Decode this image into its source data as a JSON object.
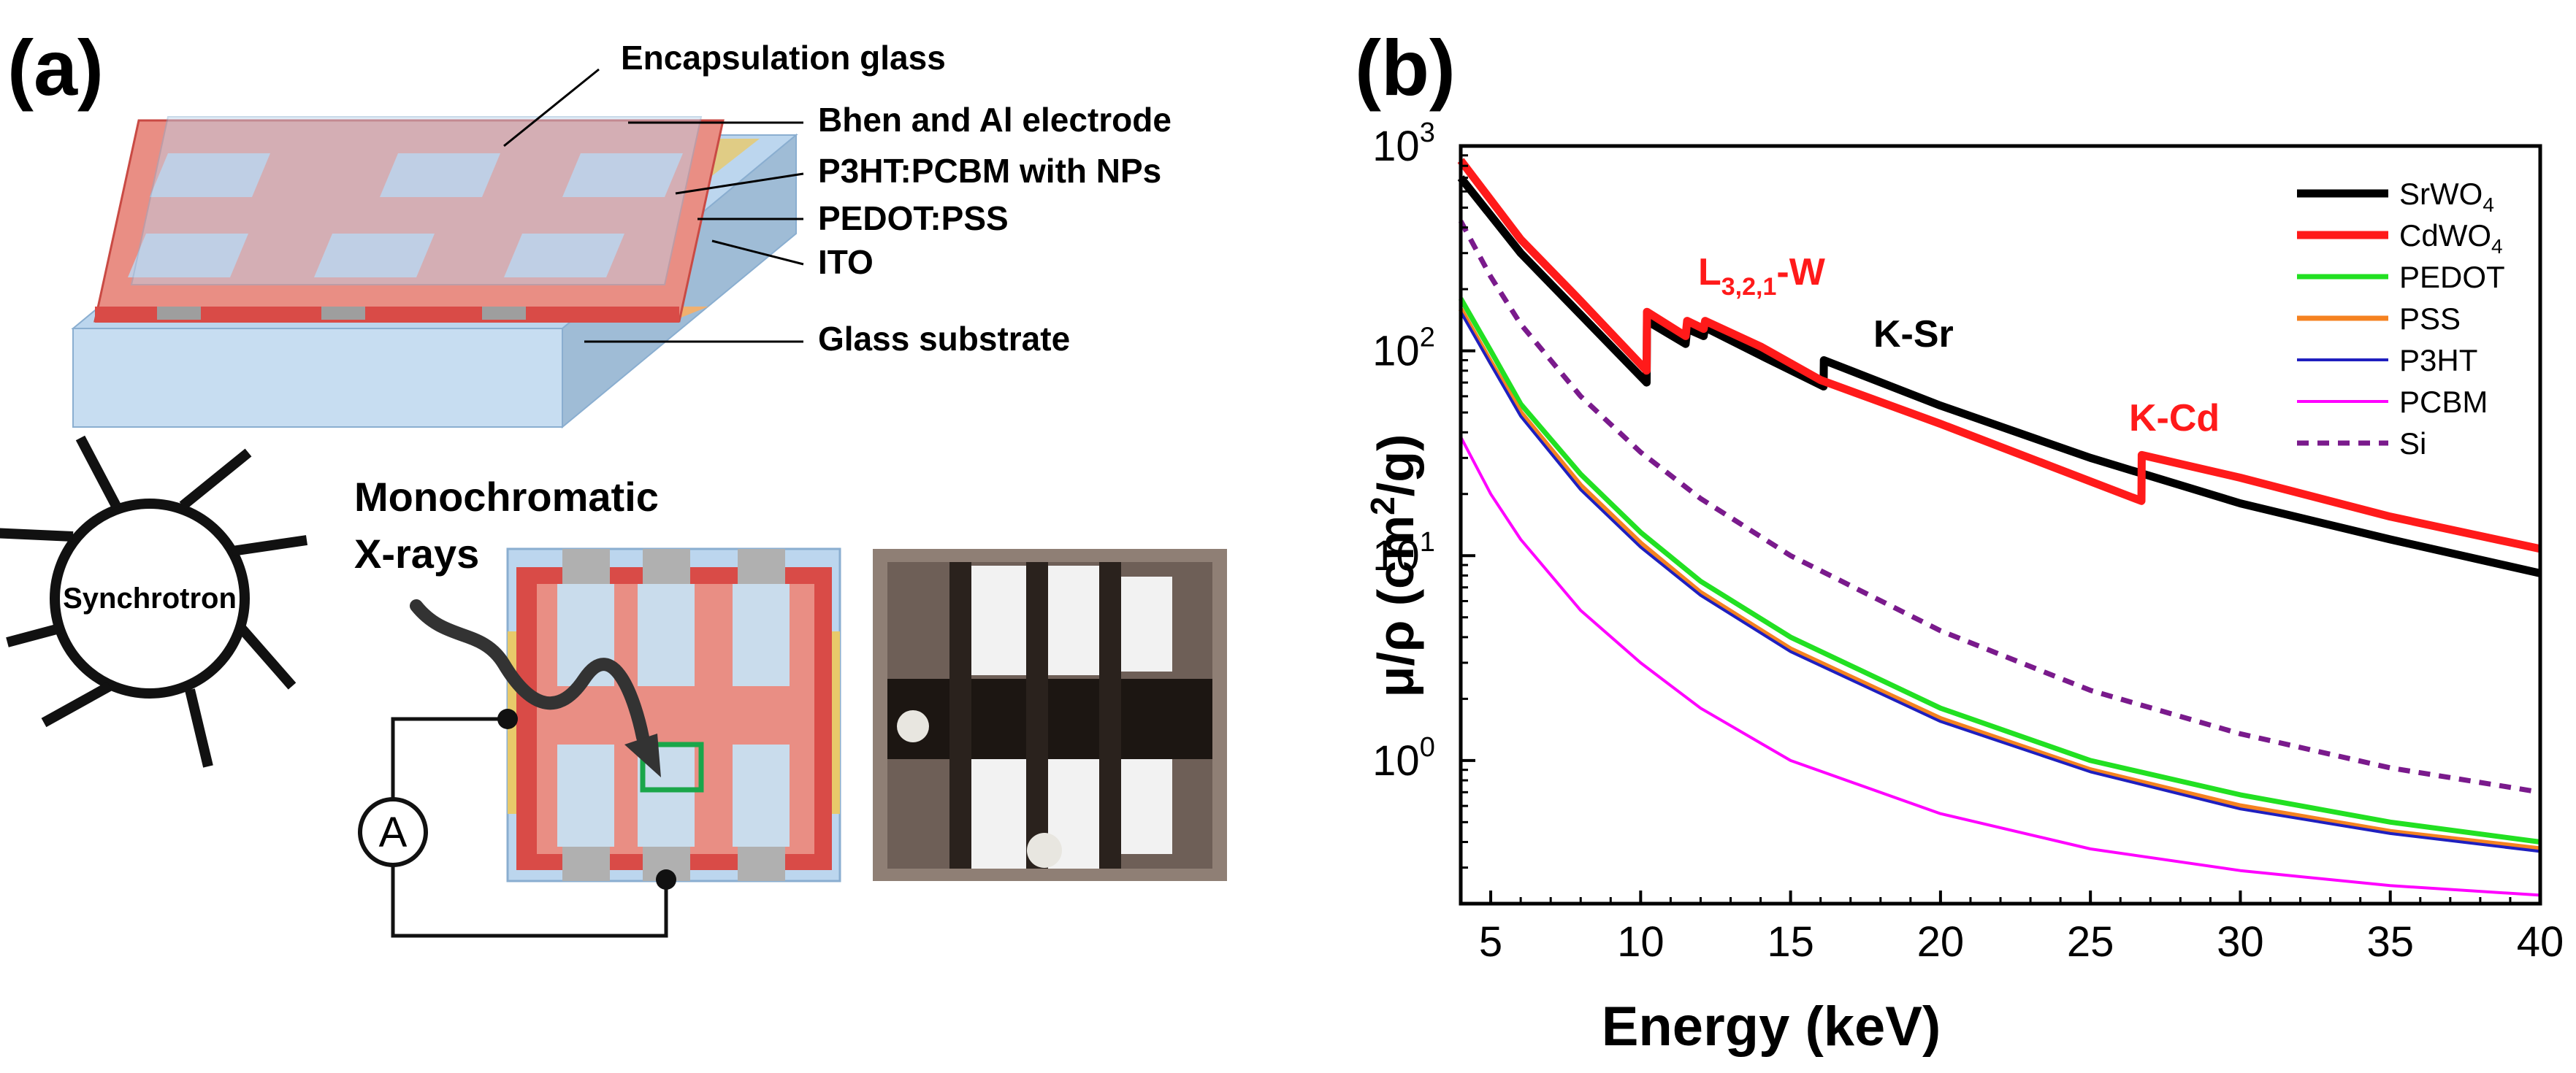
{
  "panel_a": {
    "label": "(a)",
    "layer_labels": [
      "Encapsulation glass",
      "Bhen and Al electrode",
      "P3HT:PCBM with NPs",
      "PEDOT:PSS",
      "ITO",
      "Glass substrate"
    ],
    "synchrotron_label": "Synchrotron",
    "xray_label_line1": "Monochromatic",
    "xray_label_line2": "X-rays",
    "ammeter_label": "A",
    "colors": {
      "glass": "#bcd6ee",
      "electrode": "#d9534f",
      "active": "#f2b8a8",
      "pedot": "#e8c96a",
      "ito": "#9e9e9e",
      "highlight": "#1aa64a"
    }
  },
  "panel_b": {
    "label": "(b)",
    "annotations": {
      "lw": {
        "main": "L",
        "sub": "3,2,1",
        "suffix": "-W",
        "color": "#ff1a1a"
      },
      "ksr": {
        "text": "K-Sr",
        "color": "#000000"
      },
      "kcd": {
        "text": "K-Cd",
        "color": "#ff1a1a"
      }
    }
  },
  "chart_data": {
    "type": "line",
    "title": "",
    "xlabel": "Energy (keV)",
    "ylabel": "μ/ρ (cm²/g)",
    "xscale": "linear",
    "yscale": "log",
    "xlim": [
      4,
      40
    ],
    "ylim": [
      0.2,
      1000
    ],
    "xticks": [
      5,
      10,
      15,
      20,
      25,
      30,
      35,
      40
    ],
    "yticks": [
      {
        "value": 1,
        "base": "10",
        "exp": "0"
      },
      {
        "value": 10,
        "base": "10",
        "exp": "1"
      },
      {
        "value": 100,
        "base": "10",
        "exp": "2"
      },
      {
        "value": 1000,
        "base": "10",
        "exp": "3"
      }
    ],
    "legend_position": "top-right",
    "series": [
      {
        "name": "SrWO",
        "name_sub": "4",
        "color": "#000000",
        "style": "solid",
        "width": "thick",
        "points": [
          [
            4,
            700
          ],
          [
            6,
            300
          ],
          [
            8,
            150
          ],
          [
            10.2,
            70
          ],
          [
            10.21,
            140
          ],
          [
            11.5,
            108
          ],
          [
            11.55,
            128
          ],
          [
            12.1,
            118
          ],
          [
            12.15,
            130
          ],
          [
            14,
            95
          ],
          [
            16.1,
            67
          ],
          [
            16.11,
            90
          ],
          [
            20,
            54
          ],
          [
            25,
            30
          ],
          [
            30,
            18
          ],
          [
            35,
            12
          ],
          [
            40,
            8.2
          ]
        ]
      },
      {
        "name": "CdWO",
        "name_sub": "4",
        "color": "#ff1a1a",
        "style": "solid",
        "width": "thick",
        "points": [
          [
            4,
            850
          ],
          [
            6,
            350
          ],
          [
            8,
            175
          ],
          [
            10.2,
            80
          ],
          [
            10.21,
            155
          ],
          [
            11.5,
            118
          ],
          [
            11.55,
            140
          ],
          [
            12.1,
            128
          ],
          [
            12.15,
            140
          ],
          [
            14,
            105
          ],
          [
            16,
            72
          ],
          [
            20,
            44
          ],
          [
            26.7,
            18.5
          ],
          [
            26.71,
            31
          ],
          [
            30,
            24
          ],
          [
            35,
            15.5
          ],
          [
            40,
            10.8
          ]
        ]
      },
      {
        "name": "PEDOT",
        "color": "#22e022",
        "style": "solid",
        "width": "medium",
        "points": [
          [
            4,
            180
          ],
          [
            5,
            100
          ],
          [
            6,
            55
          ],
          [
            8,
            25
          ],
          [
            10,
            13
          ],
          [
            12,
            7.5
          ],
          [
            15,
            4
          ],
          [
            20,
            1.8
          ],
          [
            25,
            1.0
          ],
          [
            30,
            0.68
          ],
          [
            35,
            0.5
          ],
          [
            40,
            0.4
          ]
        ]
      },
      {
        "name": "PSS",
        "color": "#f58220",
        "style": "solid",
        "width": "medium",
        "points": [
          [
            4,
            160
          ],
          [
            5,
            88
          ],
          [
            6,
            50
          ],
          [
            8,
            22
          ],
          [
            10,
            11.5
          ],
          [
            12,
            6.6
          ],
          [
            15,
            3.5
          ],
          [
            20,
            1.6
          ],
          [
            25,
            0.9
          ],
          [
            30,
            0.6
          ],
          [
            35,
            0.45
          ],
          [
            40,
            0.37
          ]
        ]
      },
      {
        "name": "P3HT",
        "color": "#1f1fbf",
        "style": "solid",
        "width": "thin",
        "points": [
          [
            4,
            155
          ],
          [
            5,
            86
          ],
          [
            6,
            48
          ],
          [
            8,
            21
          ],
          [
            10,
            11
          ],
          [
            12,
            6.4
          ],
          [
            15,
            3.4
          ],
          [
            20,
            1.55
          ],
          [
            25,
            0.88
          ],
          [
            30,
            0.58
          ],
          [
            35,
            0.44
          ],
          [
            40,
            0.36
          ]
        ]
      },
      {
        "name": "PCBM",
        "color": "#ff00ff",
        "style": "solid",
        "width": "thin",
        "points": [
          [
            4,
            38
          ],
          [
            5,
            20
          ],
          [
            6,
            12
          ],
          [
            8,
            5.4
          ],
          [
            10,
            3.0
          ],
          [
            12,
            1.8
          ],
          [
            15,
            1.0
          ],
          [
            20,
            0.55
          ],
          [
            25,
            0.37
          ],
          [
            30,
            0.29
          ],
          [
            35,
            0.245
          ],
          [
            40,
            0.22
          ]
        ]
      },
      {
        "name": "Si",
        "color": "#7a1a8c",
        "style": "dashed",
        "width": "medium",
        "points": [
          [
            4,
            430
          ],
          [
            5,
            230
          ],
          [
            6,
            135
          ],
          [
            8,
            60
          ],
          [
            10,
            32
          ],
          [
            12,
            19
          ],
          [
            15,
            10
          ],
          [
            20,
            4.3
          ],
          [
            25,
            2.2
          ],
          [
            30,
            1.35
          ],
          [
            35,
            0.92
          ],
          [
            40,
            0.7
          ]
        ]
      }
    ]
  }
}
